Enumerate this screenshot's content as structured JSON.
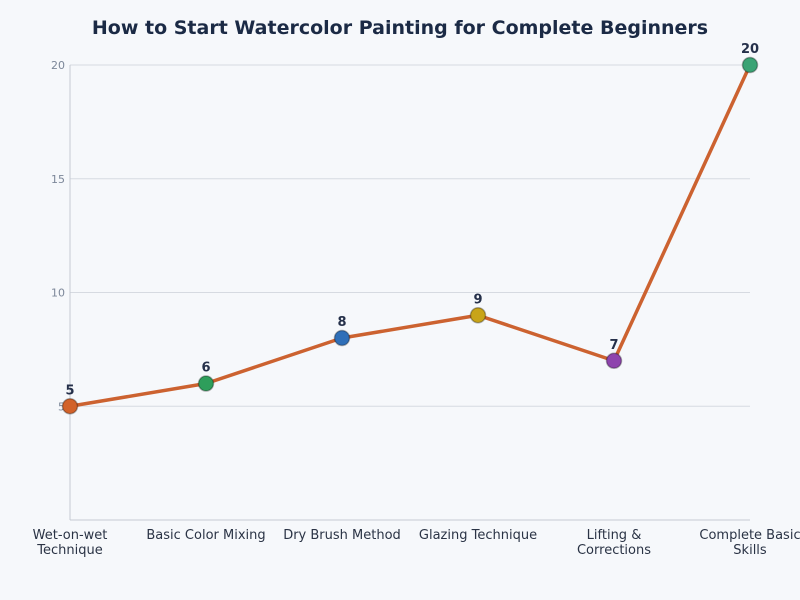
{
  "chart_data": {
    "type": "line",
    "title": "How to Start Watercolor Painting for Complete Beginners",
    "categories": [
      [
        "Wet-on-wet",
        "Technique"
      ],
      [
        "Basic Color Mixing"
      ],
      [
        "Dry Brush Method"
      ],
      [
        "Glazing Technique"
      ],
      [
        "Lifting &",
        "Corrections"
      ],
      [
        "Complete Basic",
        "Skills"
      ]
    ],
    "values": [
      5,
      6,
      8,
      9,
      7,
      20
    ],
    "point_colors": [
      "#d2622a",
      "#2e9e5b",
      "#2f6fb8",
      "#c8a419",
      "#8e44ad",
      "#3aa374"
    ],
    "line_color": "#cc6230",
    "ylim": [
      0,
      20
    ],
    "yticks": [
      5,
      10,
      15,
      20
    ],
    "grid": true,
    "xlabel": "",
    "ylabel": ""
  }
}
